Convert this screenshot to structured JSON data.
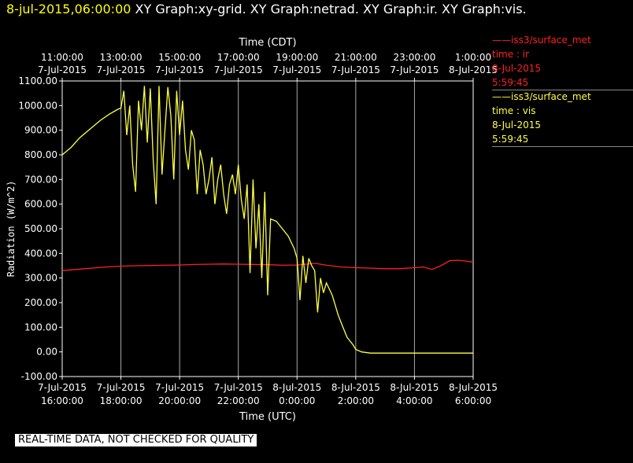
{
  "header": {
    "timestamp": "8-jul-2015,06:00:00",
    "titles": "XY Graph:xy-grid.  XY Graph:netrad.  XY Graph:ir.  XY Graph:vis."
  },
  "legend": [
    {
      "line1": "——iss3/surface_met",
      "line2": "time : ir",
      "line3": "8-Jul-2015",
      "line4": "5:59:45",
      "color": "#ff2020"
    },
    {
      "line1": "——iss3/surface_met",
      "line2": "time : vis",
      "line3": "8-Jul-2015",
      "line4": "5:59:45",
      "color": "#ffff40"
    }
  ],
  "disclaimer": "REAL-TIME DATA, NOT CHECKED FOR QUALITY",
  "chart_data": {
    "type": "line",
    "ylabel": "Radiation (W/m^2)",
    "xlabel_bottom": "Time (UTC)",
    "xlabel_top": "Time (CDT)",
    "ylim": [
      -100,
      1100
    ],
    "xlim_hours": [
      16,
      30
    ],
    "grid": true,
    "y_ticks": [
      "1100.00",
      "1000.00",
      "900.00",
      "800.00",
      "700.00",
      "600.00",
      "500.00",
      "400.00",
      "300.00",
      "200.00",
      "100.00",
      "0.00",
      "-100.00"
    ],
    "x_ticks_bottom": [
      {
        "date": "7-Jul-2015",
        "time": "16:00:00",
        "hour": 16
      },
      {
        "date": "7-Jul-2015",
        "time": "18:00:00",
        "hour": 18
      },
      {
        "date": "7-Jul-2015",
        "time": "20:00:00",
        "hour": 20
      },
      {
        "date": "7-Jul-2015",
        "time": "22:00:00",
        "hour": 22
      },
      {
        "date": "8-Jul-2015",
        "time": "0:00:00",
        "hour": 24
      },
      {
        "date": "8-Jul-2015",
        "time": "2:00:00",
        "hour": 26
      },
      {
        "date": "8-Jul-2015",
        "time": "4:00:00",
        "hour": 28
      },
      {
        "date": "8-Jul-2015",
        "time": "6:00:00",
        "hour": 30
      }
    ],
    "x_ticks_top": [
      {
        "time": "11:00:00",
        "date": "7-Jul-2015",
        "hour": 16
      },
      {
        "time": "13:00:00",
        "date": "7-Jul-2015",
        "hour": 18
      },
      {
        "time": "15:00:00",
        "date": "7-Jul-2015",
        "hour": 20
      },
      {
        "time": "17:00:00",
        "date": "7-Jul-2015",
        "hour": 22
      },
      {
        "time": "19:00:00",
        "date": "7-Jul-2015",
        "hour": 24
      },
      {
        "time": "21:00:00",
        "date": "7-Jul-2015",
        "hour": 26
      },
      {
        "time": "23:00:00",
        "date": "7-Jul-2015",
        "hour": 28
      },
      {
        "time": "1:00:00",
        "date": "8-Jul-2015",
        "hour": 30
      }
    ],
    "series": [
      {
        "name": "time : ir",
        "color": "#ff2020",
        "points": [
          [
            16.0,
            330
          ],
          [
            16.5,
            335
          ],
          [
            17.0,
            340
          ],
          [
            17.5,
            345
          ],
          [
            18.0,
            348
          ],
          [
            18.5,
            350
          ],
          [
            19.0,
            351
          ],
          [
            19.5,
            352
          ],
          [
            20.0,
            353
          ],
          [
            20.5,
            355
          ],
          [
            21.0,
            356
          ],
          [
            21.5,
            357
          ],
          [
            22.0,
            356
          ],
          [
            22.5,
            355
          ],
          [
            23.0,
            354
          ],
          [
            23.5,
            352
          ],
          [
            24.0,
            353
          ],
          [
            24.3,
            356
          ],
          [
            24.6,
            360
          ],
          [
            25.0,
            352
          ],
          [
            25.5,
            345
          ],
          [
            26.0,
            342
          ],
          [
            26.5,
            340
          ],
          [
            27.0,
            338
          ],
          [
            27.5,
            338
          ],
          [
            28.0,
            342
          ],
          [
            28.3,
            345
          ],
          [
            28.6,
            335
          ],
          [
            28.9,
            350
          ],
          [
            29.2,
            370
          ],
          [
            29.5,
            372
          ],
          [
            29.8,
            368
          ],
          [
            30.0,
            365
          ]
        ]
      },
      {
        "name": "time : vis",
        "color": "#ffff40",
        "points": [
          [
            16.0,
            800
          ],
          [
            16.3,
            830
          ],
          [
            16.6,
            870
          ],
          [
            17.0,
            910
          ],
          [
            17.3,
            940
          ],
          [
            17.6,
            965
          ],
          [
            17.9,
            985
          ],
          [
            18.0,
            990
          ],
          [
            18.1,
            1060
          ],
          [
            18.2,
            880
          ],
          [
            18.3,
            1000
          ],
          [
            18.4,
            760
          ],
          [
            18.5,
            650
          ],
          [
            18.6,
            1020
          ],
          [
            18.7,
            900
          ],
          [
            18.8,
            1080
          ],
          [
            18.9,
            850
          ],
          [
            19.0,
            1070
          ],
          [
            19.1,
            780
          ],
          [
            19.2,
            600
          ],
          [
            19.3,
            1080
          ],
          [
            19.4,
            720
          ],
          [
            19.5,
            900
          ],
          [
            19.6,
            1075
          ],
          [
            19.7,
            960
          ],
          [
            19.8,
            700
          ],
          [
            19.9,
            1060
          ],
          [
            20.0,
            880
          ],
          [
            20.1,
            1020
          ],
          [
            20.2,
            820
          ],
          [
            20.3,
            740
          ],
          [
            20.4,
            900
          ],
          [
            20.5,
            860
          ],
          [
            20.6,
            640
          ],
          [
            20.7,
            820
          ],
          [
            20.8,
            760
          ],
          [
            20.9,
            640
          ],
          [
            21.0,
            700
          ],
          [
            21.1,
            790
          ],
          [
            21.2,
            600
          ],
          [
            21.3,
            700
          ],
          [
            21.4,
            760
          ],
          [
            21.5,
            640
          ],
          [
            21.6,
            560
          ],
          [
            21.7,
            680
          ],
          [
            21.8,
            720
          ],
          [
            21.9,
            640
          ],
          [
            22.0,
            760
          ],
          [
            22.1,
            620
          ],
          [
            22.2,
            540
          ],
          [
            22.3,
            680
          ],
          [
            22.4,
            320
          ],
          [
            22.5,
            700
          ],
          [
            22.6,
            420
          ],
          [
            22.7,
            600
          ],
          [
            22.8,
            300
          ],
          [
            22.9,
            650
          ],
          [
            23.0,
            230
          ],
          [
            23.1,
            540
          ],
          [
            23.3,
            530
          ],
          [
            23.5,
            500
          ],
          [
            23.7,
            470
          ],
          [
            23.9,
            420
          ],
          [
            24.0,
            380
          ],
          [
            24.1,
            210
          ],
          [
            24.2,
            390
          ],
          [
            24.3,
            280
          ],
          [
            24.4,
            380
          ],
          [
            24.5,
            350
          ],
          [
            24.6,
            330
          ],
          [
            24.7,
            160
          ],
          [
            24.8,
            300
          ],
          [
            24.9,
            240
          ],
          [
            25.0,
            280
          ],
          [
            25.2,
            230
          ],
          [
            25.4,
            150
          ],
          [
            25.5,
            120
          ],
          [
            25.6,
            90
          ],
          [
            25.7,
            60
          ],
          [
            25.8,
            45
          ],
          [
            25.9,
            30
          ],
          [
            26.0,
            10
          ],
          [
            26.2,
            0
          ],
          [
            26.5,
            -5
          ],
          [
            27.0,
            -5
          ],
          [
            27.5,
            -5
          ],
          [
            28.0,
            -5
          ],
          [
            28.5,
            -5
          ],
          [
            29.0,
            -5
          ],
          [
            29.5,
            -5
          ],
          [
            30.0,
            -5
          ]
        ]
      }
    ]
  }
}
